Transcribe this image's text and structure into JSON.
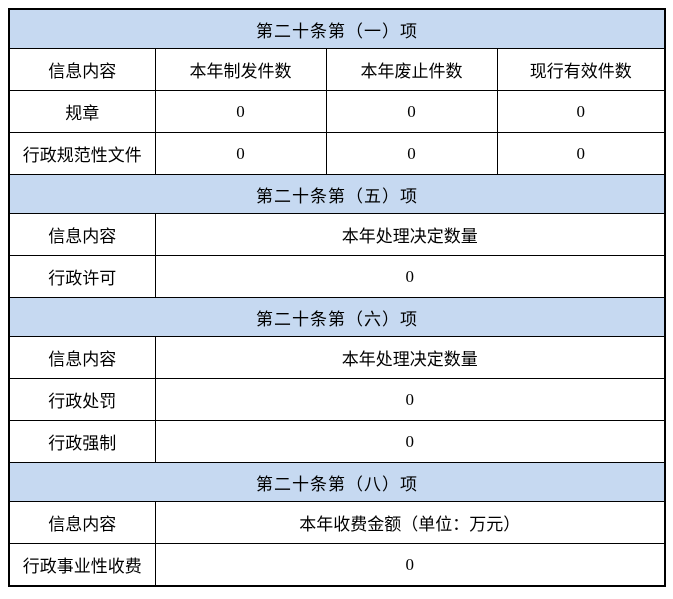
{
  "page": {
    "background": "#ffffff",
    "description": "政府信息公开年度报告统计表"
  },
  "colors": {
    "section_header_bg": "#c6d9f1",
    "border": "#000000",
    "text": "#000000",
    "cell_bg": "#ffffff"
  },
  "table": {
    "sections": [
      {
        "title": "第二十条第（一）项",
        "columns": [
          "信息内容",
          "本年制发件数",
          "本年废止件数",
          "现行有效件数"
        ],
        "rows": [
          {
            "label": "规章",
            "values": [
              "0",
              "0",
              "0"
            ]
          },
          {
            "label": "行政规范性文件",
            "values": [
              "0",
              "0",
              "0"
            ]
          }
        ]
      },
      {
        "title": "第二十条第（五）项",
        "columns": [
          "信息内容",
          "本年处理决定数量"
        ],
        "rows": [
          {
            "label": "行政许可",
            "values": [
              "0"
            ]
          }
        ]
      },
      {
        "title": "第二十条第（六）项",
        "columns": [
          "信息内容",
          "本年处理决定数量"
        ],
        "rows": [
          {
            "label": "行政处罚",
            "values": [
              "0"
            ]
          },
          {
            "label": "行政强制",
            "values": [
              "0"
            ]
          }
        ]
      },
      {
        "title": "第二十条第（八）项",
        "columns": [
          "信息内容",
          "本年收费金额（单位：万元）"
        ],
        "rows": [
          {
            "label": "行政事业性收费",
            "values": [
              "0"
            ]
          }
        ]
      }
    ]
  }
}
